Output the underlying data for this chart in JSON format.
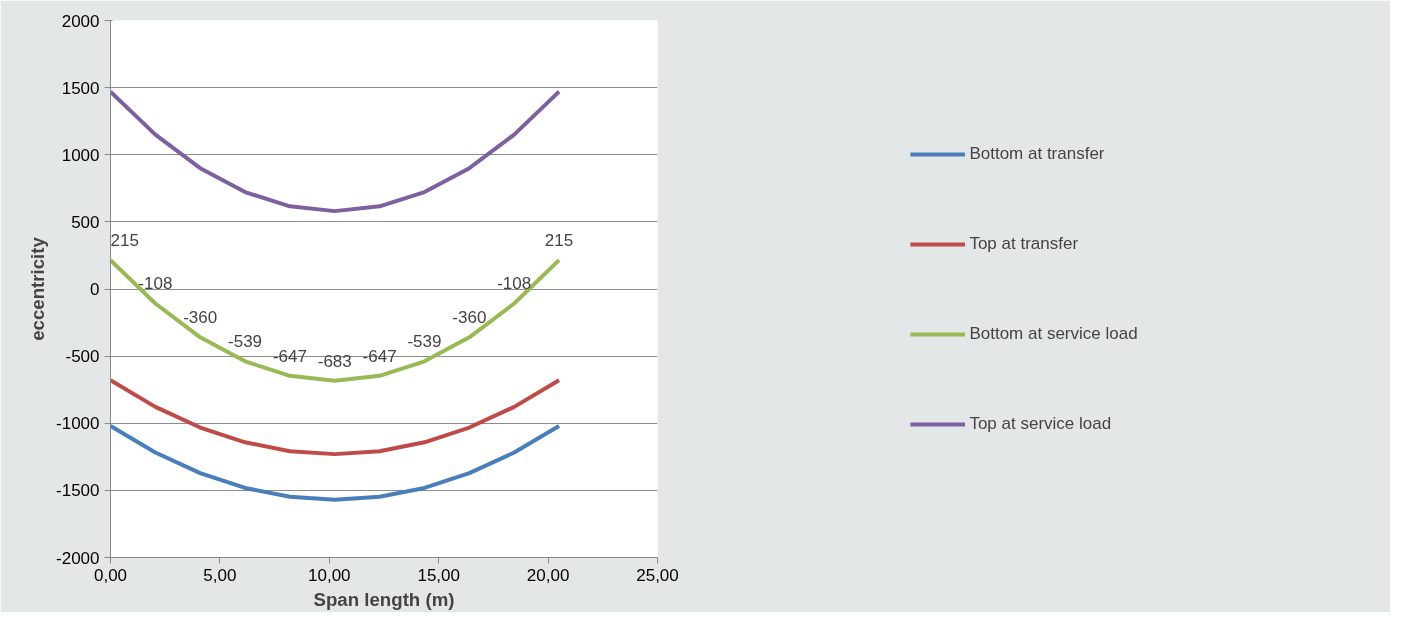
{
  "chart_data": {
    "type": "line",
    "xlabel": "Span length (m)",
    "ylabel": "eccentricity",
    "x": [
      0,
      2.05,
      4.1,
      6.15,
      8.2,
      10.25,
      12.3,
      14.35,
      16.4,
      18.45,
      20.5
    ],
    "series": [
      {
        "name": "Bottom at transfer",
        "color": "#4a7ebb",
        "values": [
          -1020,
          -1218,
          -1372,
          -1482,
          -1548,
          -1570,
          -1548,
          -1482,
          -1372,
          -1218,
          -1020
        ]
      },
      {
        "name": "Top at transfer",
        "color": "#be4b48",
        "values": [
          -680,
          -878,
          -1032,
          -1142,
          -1208,
          -1230,
          -1208,
          -1142,
          -1032,
          -878,
          -680
        ]
      },
      {
        "name": "Bottom at service load",
        "color": "#98b954",
        "values": [
          215,
          -108,
          -360,
          -539,
          -647,
          -683,
          -647,
          -539,
          -360,
          -108,
          215
        ],
        "value_labels": [
          "215",
          "-108",
          "-360",
          "-539",
          "-647",
          "-683",
          "-647",
          "-539",
          "-360",
          "-108",
          "215"
        ]
      },
      {
        "name": "Top at service load",
        "color": "#7d60a0",
        "values": [
          1470,
          1150,
          900,
          722,
          616,
          580,
          616,
          722,
          900,
          1150,
          1470
        ]
      }
    ],
    "xlim": [
      0,
      25
    ],
    "ylim": [
      -2000,
      2000
    ],
    "xticks": [
      {
        "value": 0,
        "label": "0,00"
      },
      {
        "value": 5,
        "label": "5,00"
      },
      {
        "value": 10,
        "label": "10,00"
      },
      {
        "value": 15,
        "label": "15,00"
      },
      {
        "value": 20,
        "label": "20,00"
      },
      {
        "value": 25,
        "label": "25,00"
      }
    ],
    "yticks": [
      -2000,
      -1500,
      -1000,
      -500,
      0,
      500,
      1000,
      1500,
      2000
    ],
    "grid": "y",
    "legend": "right",
    "marker": "none",
    "line_style": "solid"
  }
}
